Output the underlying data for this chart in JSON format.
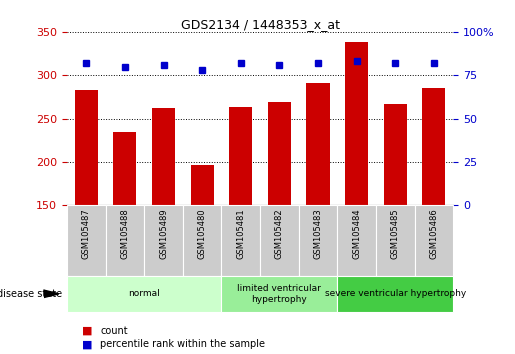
{
  "title": "GDS2134 / 1448353_x_at",
  "samples": [
    "GSM105487",
    "GSM105488",
    "GSM105489",
    "GSM105480",
    "GSM105481",
    "GSM105482",
    "GSM105483",
    "GSM105484",
    "GSM105485",
    "GSM105486"
  ],
  "counts": [
    283,
    235,
    262,
    197,
    263,
    269,
    291,
    338,
    267,
    285
  ],
  "percentiles": [
    82,
    80,
    81,
    78,
    82,
    81,
    82,
    83,
    82,
    82
  ],
  "ylim_left": [
    150,
    350
  ],
  "ylim_right": [
    0,
    100
  ],
  "yticks_left": [
    150,
    200,
    250,
    300,
    350
  ],
  "yticks_right": [
    0,
    25,
    50,
    75,
    100
  ],
  "groups": [
    {
      "label": "normal",
      "indices": [
        0,
        1,
        2,
        3
      ],
      "color": "#ccffcc"
    },
    {
      "label": "limited ventricular\nhypertrophy",
      "indices": [
        4,
        5,
        6
      ],
      "color": "#99ee99"
    },
    {
      "label": "severe ventricular hypertrophy",
      "indices": [
        7,
        8,
        9
      ],
      "color": "#44cc44"
    }
  ],
  "bar_color": "#cc0000",
  "dot_color": "#0000cc",
  "bg_color": "#ffffff",
  "grid_color": "#000000",
  "tick_label_color_left": "#cc0000",
  "tick_label_color_right": "#0000cc",
  "disease_state_label": "disease state",
  "legend_count_label": "count",
  "legend_percentile_label": "percentile rank within the sample",
  "sample_bg_color": "#cccccc",
  "sample_border_color": "#ffffff",
  "group_border_color": "#ffffff"
}
